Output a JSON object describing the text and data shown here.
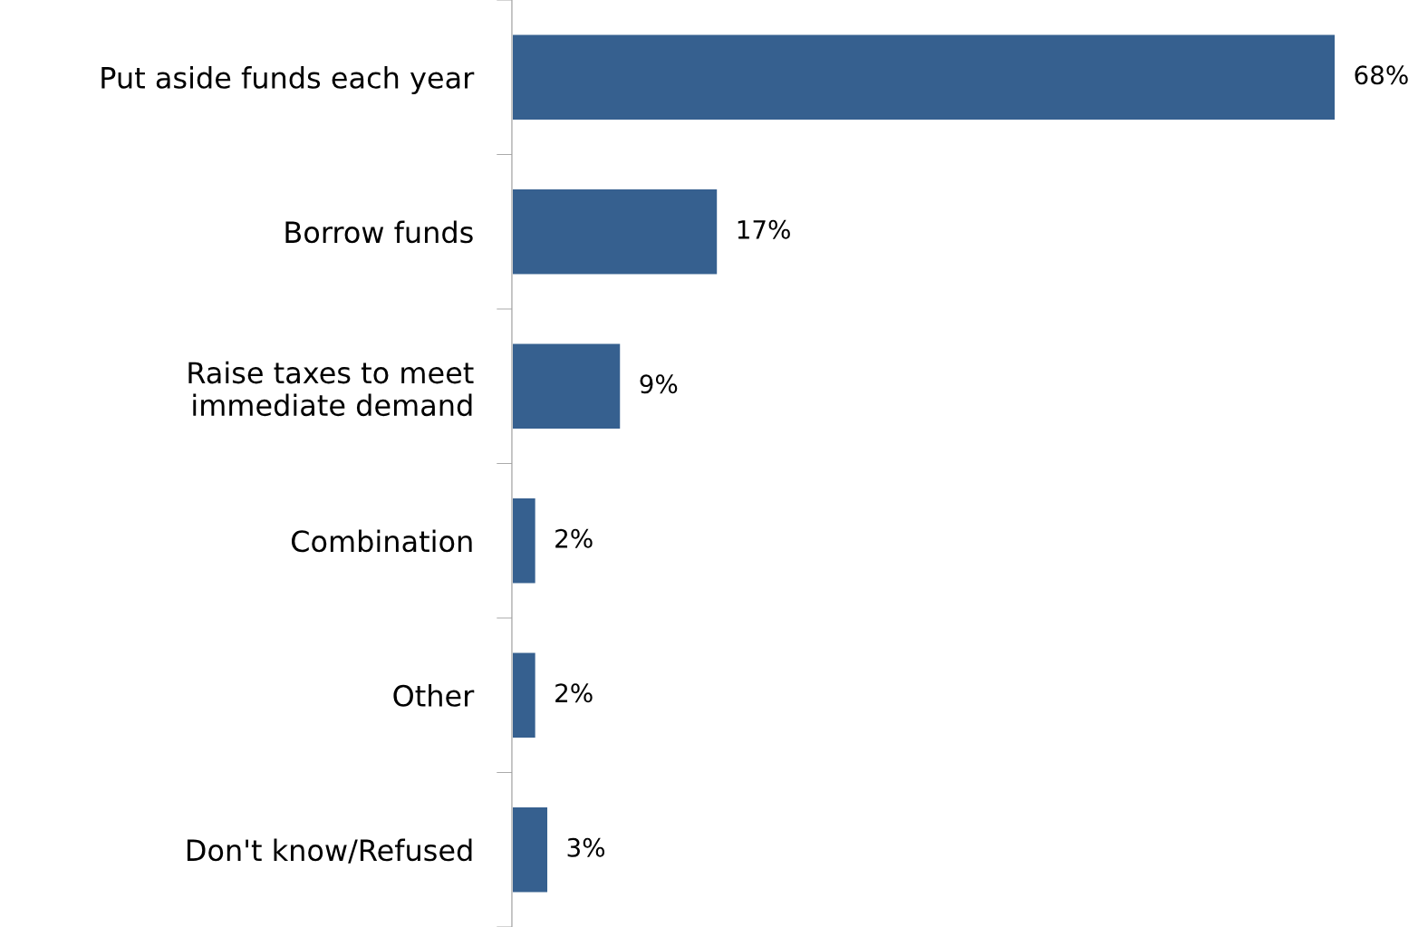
{
  "chart_data": {
    "type": "bar",
    "orientation": "horizontal",
    "categories": [
      "Put aside funds each year",
      "Borrow funds",
      "Raise taxes to meet\nimmediate demand",
      "Combination",
      "Other",
      "Don't know/Refused"
    ],
    "values": [
      68,
      17,
      9,
      2,
      2,
      3
    ],
    "value_labels": [
      "68%",
      "17%",
      "9%",
      "2%",
      "2%",
      "3%"
    ],
    "color": "#36608f",
    "grid": false,
    "legend": false
  }
}
